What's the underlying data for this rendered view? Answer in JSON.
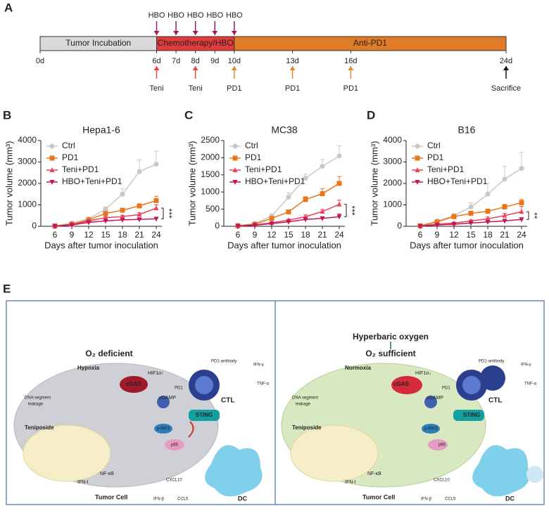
{
  "panel_labels": {
    "a": "A",
    "b": "B",
    "c": "C",
    "d": "D",
    "e": "E"
  },
  "timeline": {
    "xlim": [
      0,
      24
    ],
    "ticks": [
      {
        "value": 0,
        "label": "0d"
      },
      {
        "value": 6,
        "label": "6d"
      },
      {
        "value": 7,
        "label": "7d"
      },
      {
        "value": 8,
        "label": "8d"
      },
      {
        "value": 9,
        "label": "9d"
      },
      {
        "value": 10,
        "label": "10d"
      },
      {
        "value": 13,
        "label": "13d"
      },
      {
        "value": 16,
        "label": "16d"
      },
      {
        "value": 24,
        "label": "24d"
      }
    ],
    "phases": [
      {
        "label": "Tumor Incubation",
        "start": 0,
        "end": 6,
        "color": "#d9d9d9"
      },
      {
        "label": "Chemotherapy/HBO",
        "start": 6,
        "end": 10,
        "color": "#e23b3b"
      },
      {
        "label": "Anti-PD1",
        "start": 10,
        "end": 24,
        "color": "#e07b28"
      }
    ],
    "events": [
      {
        "label": "HBO",
        "days": [
          6,
          7,
          8,
          9,
          10
        ],
        "position": "above",
        "color": "#a3195b"
      },
      {
        "label": "Teni",
        "days": [
          6,
          8
        ],
        "position": "below",
        "color": "#e8454a"
      },
      {
        "label": "PD1",
        "days": [
          10,
          13,
          16
        ],
        "position": "below",
        "color": "#e6892c"
      },
      {
        "label": "Sacrifice",
        "days": [
          24
        ],
        "position": "below",
        "color": "#111111"
      }
    ]
  },
  "chart_data": [
    {
      "type": "line",
      "title": "Hepa1-6",
      "x_label": "Days after tumor inoculation",
      "y_label": "Tumor volume (mm³)",
      "x": [
        6,
        9,
        12,
        15,
        18,
        21,
        24
      ],
      "xlim": [
        3.5,
        25
      ],
      "xticks": [
        6,
        9,
        12,
        15,
        18,
        21,
        24
      ],
      "ylim": [
        0,
        4000
      ],
      "yticks": [
        0,
        1000,
        2000,
        3000,
        4000
      ],
      "legend": "upper left",
      "annotation": "***",
      "series": [
        {
          "name": "Ctrl",
          "color": "#c8c8c8",
          "marker": "circle",
          "values": [
            20,
            150,
            350,
            800,
            1500,
            2550,
            2900
          ],
          "errors": [
            20,
            50,
            60,
            100,
            250,
            550,
            600
          ]
        },
        {
          "name": "PD1",
          "color": "#e8761c",
          "marker": "square",
          "values": [
            15,
            100,
            300,
            600,
            750,
            950,
            1200
          ],
          "errors": [
            10,
            30,
            40,
            60,
            80,
            100,
            200
          ]
        },
        {
          "name": "Teni+PD1",
          "color": "#e8455a",
          "marker": "triangle-up",
          "values": [
            10,
            80,
            250,
            400,
            450,
            550,
            850
          ],
          "errors": [
            5,
            20,
            30,
            50,
            60,
            80,
            150
          ]
        },
        {
          "name": "HBO+Teni+PD1",
          "color": "#c2185b",
          "marker": "triangle-down",
          "values": [
            10,
            60,
            180,
            250,
            300,
            320,
            350
          ],
          "errors": [
            5,
            15,
            30,
            40,
            40,
            50,
            50
          ]
        }
      ]
    },
    {
      "type": "line",
      "title": "MC38",
      "x_label": "Days after tumor inoculation",
      "y_label": "Tumor volume (mm³)",
      "x": [
        6,
        9,
        12,
        15,
        18,
        21,
        24
      ],
      "xlim": [
        3.5,
        25
      ],
      "xticks": [
        6,
        9,
        12,
        15,
        18,
        21,
        24
      ],
      "ylim": [
        0,
        2500
      ],
      "yticks": [
        0,
        500,
        1000,
        1500,
        2000,
        2500
      ],
      "legend": "upper left",
      "annotation": "***",
      "series": [
        {
          "name": "Ctrl",
          "color": "#c8c8c8",
          "marker": "circle",
          "values": [
            20,
            80,
            300,
            850,
            1400,
            1750,
            2050
          ],
          "errors": [
            10,
            30,
            60,
            120,
            120,
            200,
            300
          ]
        },
        {
          "name": "PD1",
          "color": "#e8761c",
          "marker": "square",
          "values": [
            15,
            60,
            230,
            420,
            780,
            950,
            1250
          ],
          "errors": [
            10,
            20,
            40,
            50,
            80,
            150,
            200
          ]
        },
        {
          "name": "Teni+PD1",
          "color": "#e8455a",
          "marker": "triangle-up",
          "values": [
            10,
            40,
            100,
            180,
            280,
            430,
            640
          ],
          "errors": [
            5,
            10,
            20,
            30,
            50,
            60,
            120
          ]
        },
        {
          "name": "HBO+Teni+PD1",
          "color": "#c2185b",
          "marker": "triangle-down",
          "values": [
            10,
            30,
            80,
            130,
            200,
            230,
            280
          ],
          "errors": [
            5,
            10,
            15,
            20,
            30,
            40,
            80
          ]
        }
      ]
    },
    {
      "type": "line",
      "title": "B16",
      "x_label": "Days after tumor inoculation",
      "y_label": "Tumor volume (mm³)",
      "x": [
        6,
        9,
        12,
        15,
        18,
        21,
        24
      ],
      "xlim": [
        3.5,
        25
      ],
      "xticks": [
        6,
        9,
        12,
        15,
        18,
        21,
        24
      ],
      "ylim": [
        0,
        4000
      ],
      "yticks": [
        0,
        1000,
        2000,
        3000,
        4000
      ],
      "legend": "upper left",
      "annotation": "**",
      "series": [
        {
          "name": "Ctrl",
          "color": "#c8c8c8",
          "marker": "circle",
          "values": [
            30,
            250,
            500,
            900,
            1500,
            2200,
            2700
          ],
          "errors": [
            20,
            60,
            100,
            200,
            500,
            600,
            750
          ]
        },
        {
          "name": "PD1",
          "color": "#e8761c",
          "marker": "square",
          "values": [
            20,
            200,
            450,
            600,
            700,
            900,
            1100
          ],
          "errors": [
            10,
            40,
            80,
            100,
            100,
            120,
            150
          ]
        },
        {
          "name": "Teni+PD1",
          "color": "#e8455a",
          "marker": "triangle-up",
          "values": [
            15,
            100,
            150,
            250,
            350,
            500,
            680
          ],
          "errors": [
            10,
            30,
            40,
            50,
            80,
            100,
            250
          ]
        },
        {
          "name": "HBO+Teni+PD1",
          "color": "#c2185b",
          "marker": "triangle-down",
          "values": [
            10,
            60,
            100,
            150,
            200,
            250,
            320
          ],
          "errors": [
            5,
            20,
            30,
            40,
            50,
            50,
            60
          ]
        }
      ]
    }
  ],
  "schematic": {
    "left": {
      "o2": "O₂ deficient",
      "hypoxia": "Hypoxia",
      "hif": "HIF1α↑",
      "cgas": "cGAS",
      "cgamp": "cGAMP",
      "dna1": "DNA segment",
      "dna2": "leakage",
      "sting": "STING",
      "teni": "Teniposide",
      "pirf3": "p-IRF3",
      "p65": "p65",
      "nfkb": "NF-κB",
      "ifni": "IFN-I",
      "tumor": "Tumor Cell",
      "ifnb": "IFN-β",
      "cxcl10": "CXCL10",
      "ccl5": "CCL5",
      "dc": "DC",
      "ctl": "CTL",
      "pd1": "PD1",
      "ab": "PD1-antibody",
      "ifng": "IFN-γ",
      "tnf": "TNF-α"
    },
    "right": {
      "hbo": "Hyperbaric oxygen",
      "o2": "O₂ sufficient",
      "hypoxia": "Normoxia",
      "hif": "HIF1α↓",
      "cgas": "cGAS",
      "cgamp": "cGAMP",
      "dna1": "DNA segment",
      "dna2": "leakage",
      "sting": "STING",
      "teni": "Teniposide",
      "pirf3": "p-IRF3",
      "p65": "p65",
      "nfkb": "NF-κB",
      "ifni": "IFN-I",
      "tumor": "Tumor Cell",
      "ifnb": "IFN-β",
      "cxcl10": "CXCL10",
      "ccl5": "CCL5",
      "dc": "DC",
      "ctl": "CTL",
      "pd1": "PD1",
      "ab": "PD1-antibody",
      "ifng": "IFN-γ",
      "tnf": "TNF-α"
    }
  }
}
